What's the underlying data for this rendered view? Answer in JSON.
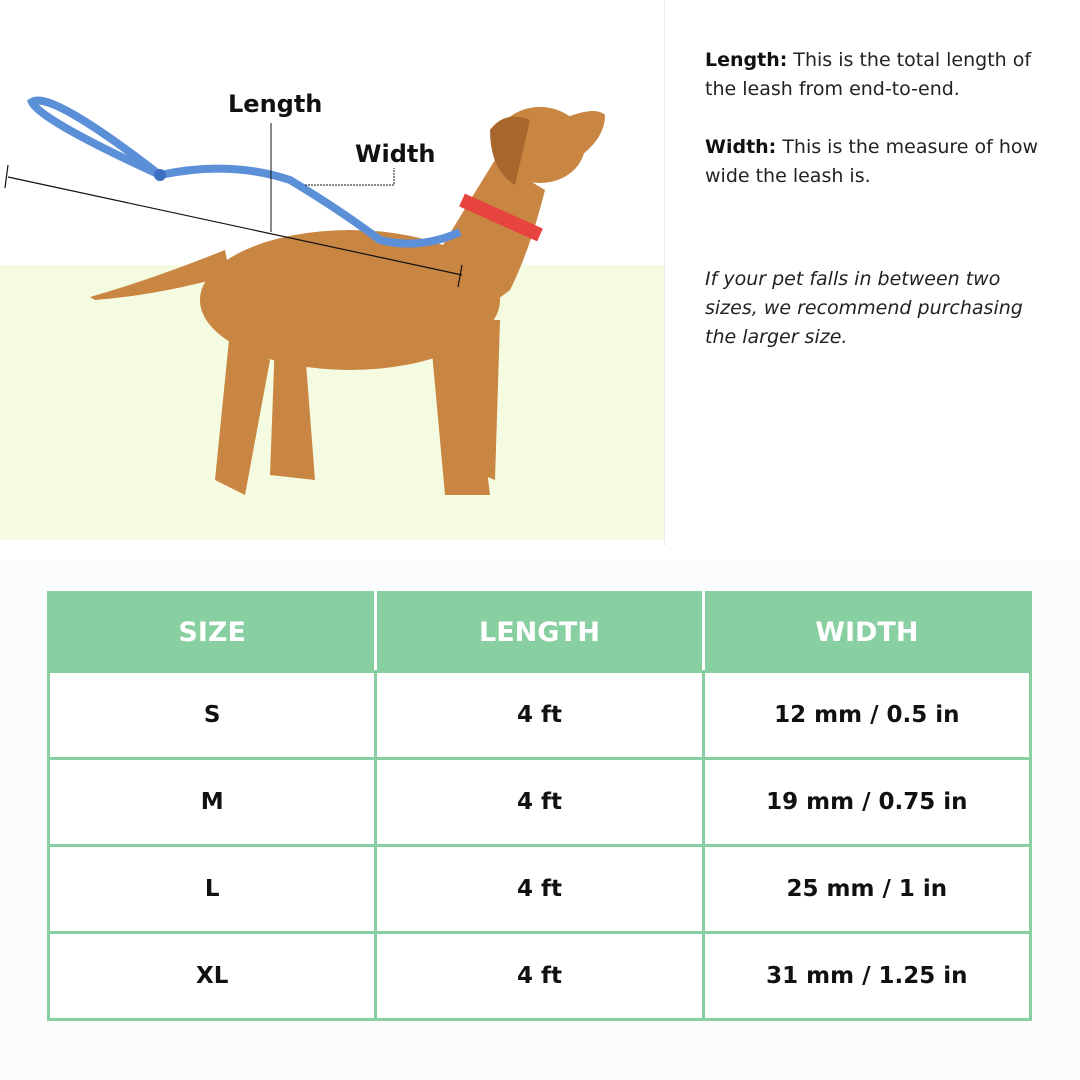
{
  "illustration": {
    "length_label": "Length",
    "width_label": "Width"
  },
  "descriptions": {
    "length_term": "Length:",
    "length_text": " This is the total length of the leash from end-to-end.",
    "width_term": "Width:",
    "width_text": " This is the measure of how wide the leash is.",
    "note": "If your pet falls in between two sizes, we recommend purchasing the larger size."
  },
  "colors": {
    "header": "#88cfa1",
    "ground": "#f4fbe1",
    "leash": "#5b8fd8",
    "collar": "#e8443f"
  },
  "table": {
    "headers": [
      "SIZE",
      "LENGTH",
      "WIDTH"
    ],
    "rows": [
      [
        "S",
        "4 ft",
        "12 mm / 0.5 in"
      ],
      [
        "M",
        "4 ft",
        "19 mm / 0.75 in"
      ],
      [
        "L",
        "4 ft",
        "25 mm / 1 in"
      ],
      [
        "XL",
        "4 ft",
        "31 mm / 1.25 in"
      ]
    ]
  }
}
